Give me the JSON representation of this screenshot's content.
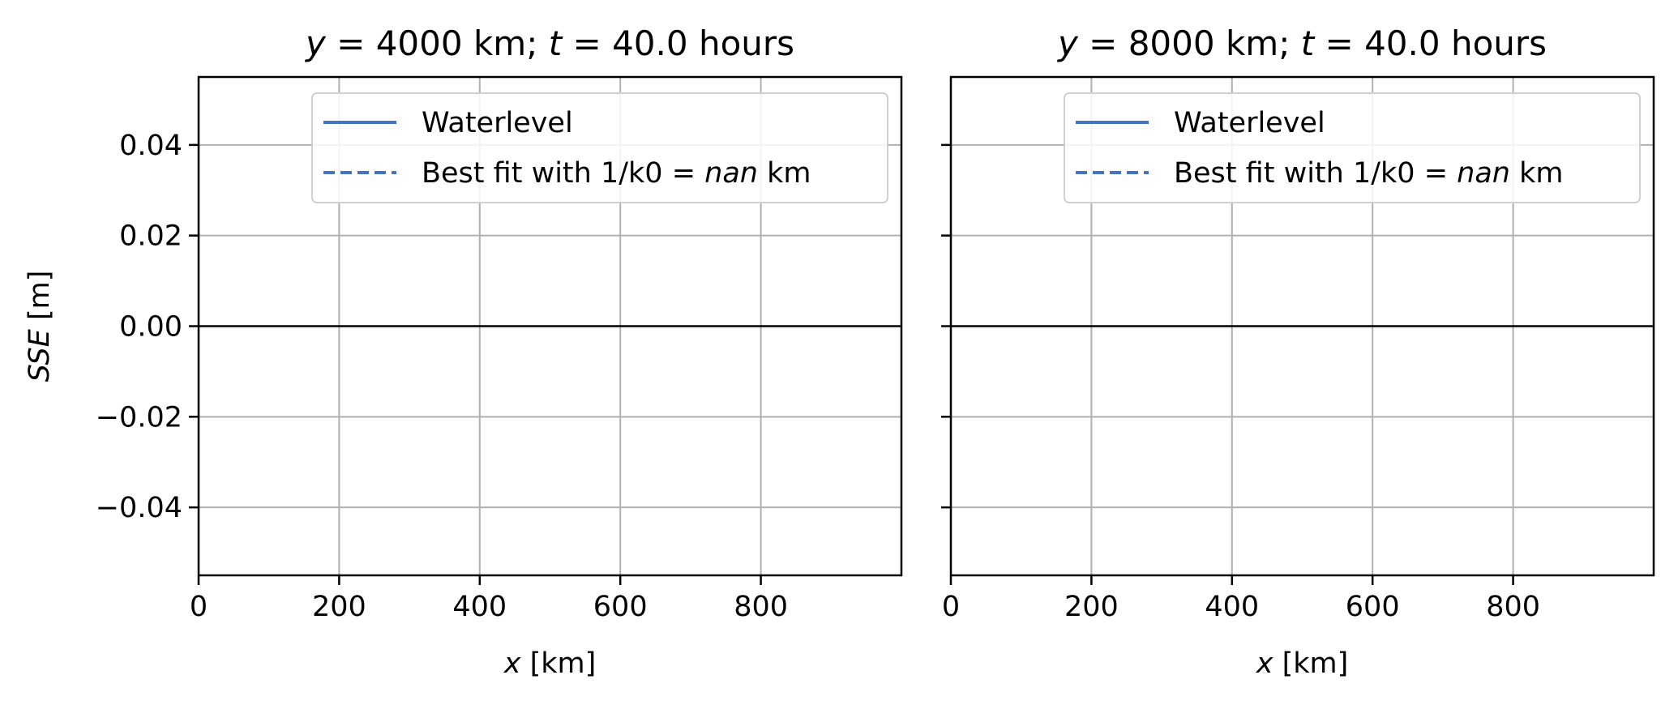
{
  "chart_data": [
    {
      "type": "line",
      "title": "y = 4000 km; t = 40.0 hours",
      "xlabel": "x [km]",
      "ylabel": "SSE [m]",
      "xlim": [
        0,
        1000
      ],
      "ylim": [
        -0.055,
        0.055
      ],
      "xticks": [
        0,
        200,
        400,
        600,
        800
      ],
      "xtick_labels": [
        "0",
        "200",
        "400",
        "600",
        "800"
      ],
      "yticks": [
        -0.04,
        -0.02,
        0.0,
        0.02,
        0.04
      ],
      "ytick_labels": [
        "−0.04",
        "−0.02",
        "0.00",
        "0.02",
        "0.04"
      ],
      "grid": true,
      "reference_line_y": 0,
      "legend_position": "top-right",
      "series": [
        {
          "name": "Waterlevel",
          "style": "solid",
          "color": "#4472c4",
          "x": [],
          "y": []
        },
        {
          "name": "Best fit with 1/k0 = nan km",
          "style": "dashed",
          "color": "#4472c4",
          "x": [],
          "y": []
        }
      ]
    },
    {
      "type": "line",
      "title": "y = 8000 km; t = 40.0 hours",
      "xlabel": "x [km]",
      "ylabel": "",
      "xlim": [
        0,
        1000
      ],
      "ylim": [
        -0.055,
        0.055
      ],
      "xticks": [
        0,
        200,
        400,
        600,
        800
      ],
      "xtick_labels": [
        "0",
        "200",
        "400",
        "600",
        "800"
      ],
      "yticks": [
        -0.04,
        -0.02,
        0.0,
        0.02,
        0.04
      ],
      "ytick_labels": [
        "",
        "",
        "",
        "",
        ""
      ],
      "grid": true,
      "reference_line_y": 0,
      "legend_position": "top-right",
      "series": [
        {
          "name": "Waterlevel",
          "style": "solid",
          "color": "#4472c4",
          "x": [],
          "y": []
        },
        {
          "name": "Best fit with 1/k0 = nan km",
          "style": "dashed",
          "color": "#4472c4",
          "x": [],
          "y": []
        }
      ]
    }
  ]
}
